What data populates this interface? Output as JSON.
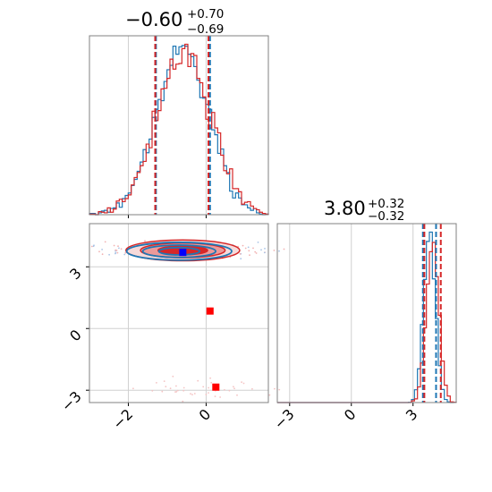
{
  "chart_data": {
    "type": "corner",
    "colors": {
      "run_a": "#1f77b4",
      "run_b": "#d62728",
      "marker_a": "#0000ff",
      "marker_b": "#ff0000",
      "grid": "#d0d0d0",
      "frame": "#808080"
    },
    "grid": true,
    "panels": [
      {
        "id": "hist-param1",
        "type": "histogram",
        "title": {
          "main": "−0.60",
          "sup": "+0.70",
          "sub": "−0.69"
        },
        "xlim": [
          -3.0,
          1.6
        ],
        "xticks": [
          -2,
          0
        ],
        "median": -0.6,
        "quantiles": {
          "run_a": [
            -1.29,
            0.1
          ],
          "run_b": [
            -1.31,
            0.06
          ]
        },
        "series": [
          {
            "name": "",
            "color_key": "run_a",
            "distribution": {
              "mean": -0.62,
              "std": 0.68
            }
          },
          {
            "name": "",
            "color_key": "run_b",
            "distribution": {
              "mean": -0.58,
              "std": 0.7
            }
          }
        ]
      },
      {
        "id": "scatter-param1-param2",
        "type": "contour_scatter",
        "xlim": [
          -3.0,
          1.6
        ],
        "ylim": [
          -3.6,
          5.1
        ],
        "xticks": [
          -2,
          0
        ],
        "yticks": [
          -3,
          0,
          3
        ],
        "ytick_labels": [
          "−3",
          "0",
          "3"
        ],
        "contour_center": {
          "x": -0.6,
          "y": 3.8
        },
        "markers": [
          {
            "x": -0.6,
            "y": 3.7,
            "color_key": "marker_a",
            "label": ""
          },
          {
            "x": 0.1,
            "y": 0.85,
            "color_key": "marker_b",
            "label": ""
          },
          {
            "x": 0.25,
            "y": -2.85,
            "color_key": "marker_b",
            "label": ""
          }
        ]
      },
      {
        "id": "hist-param2",
        "type": "histogram",
        "title": {
          "main": "3.80",
          "sup": "+0.32",
          "sub": "−0.32"
        },
        "xlim": [
          -3.6,
          5.1
        ],
        "xticks": [
          -3,
          0,
          3
        ],
        "xtick_labels": [
          "−3",
          "0",
          "3"
        ],
        "median": 3.8,
        "quantiles": {
          "run_a": [
            3.48,
            4.12
          ],
          "run_b": [
            3.55,
            4.35
          ]
        },
        "series": [
          {
            "name": "",
            "color_key": "run_a",
            "distribution": {
              "mean": 3.8,
              "std": 0.28
            }
          },
          {
            "name": "",
            "color_key": "run_b",
            "distribution": {
              "mean": 3.95,
              "std": 0.3
            }
          }
        ]
      }
    ],
    "bottom_xticks_left": [
      "−2",
      "0"
    ],
    "bottom_xticks_right": [
      "−3",
      "0",
      "3"
    ]
  }
}
